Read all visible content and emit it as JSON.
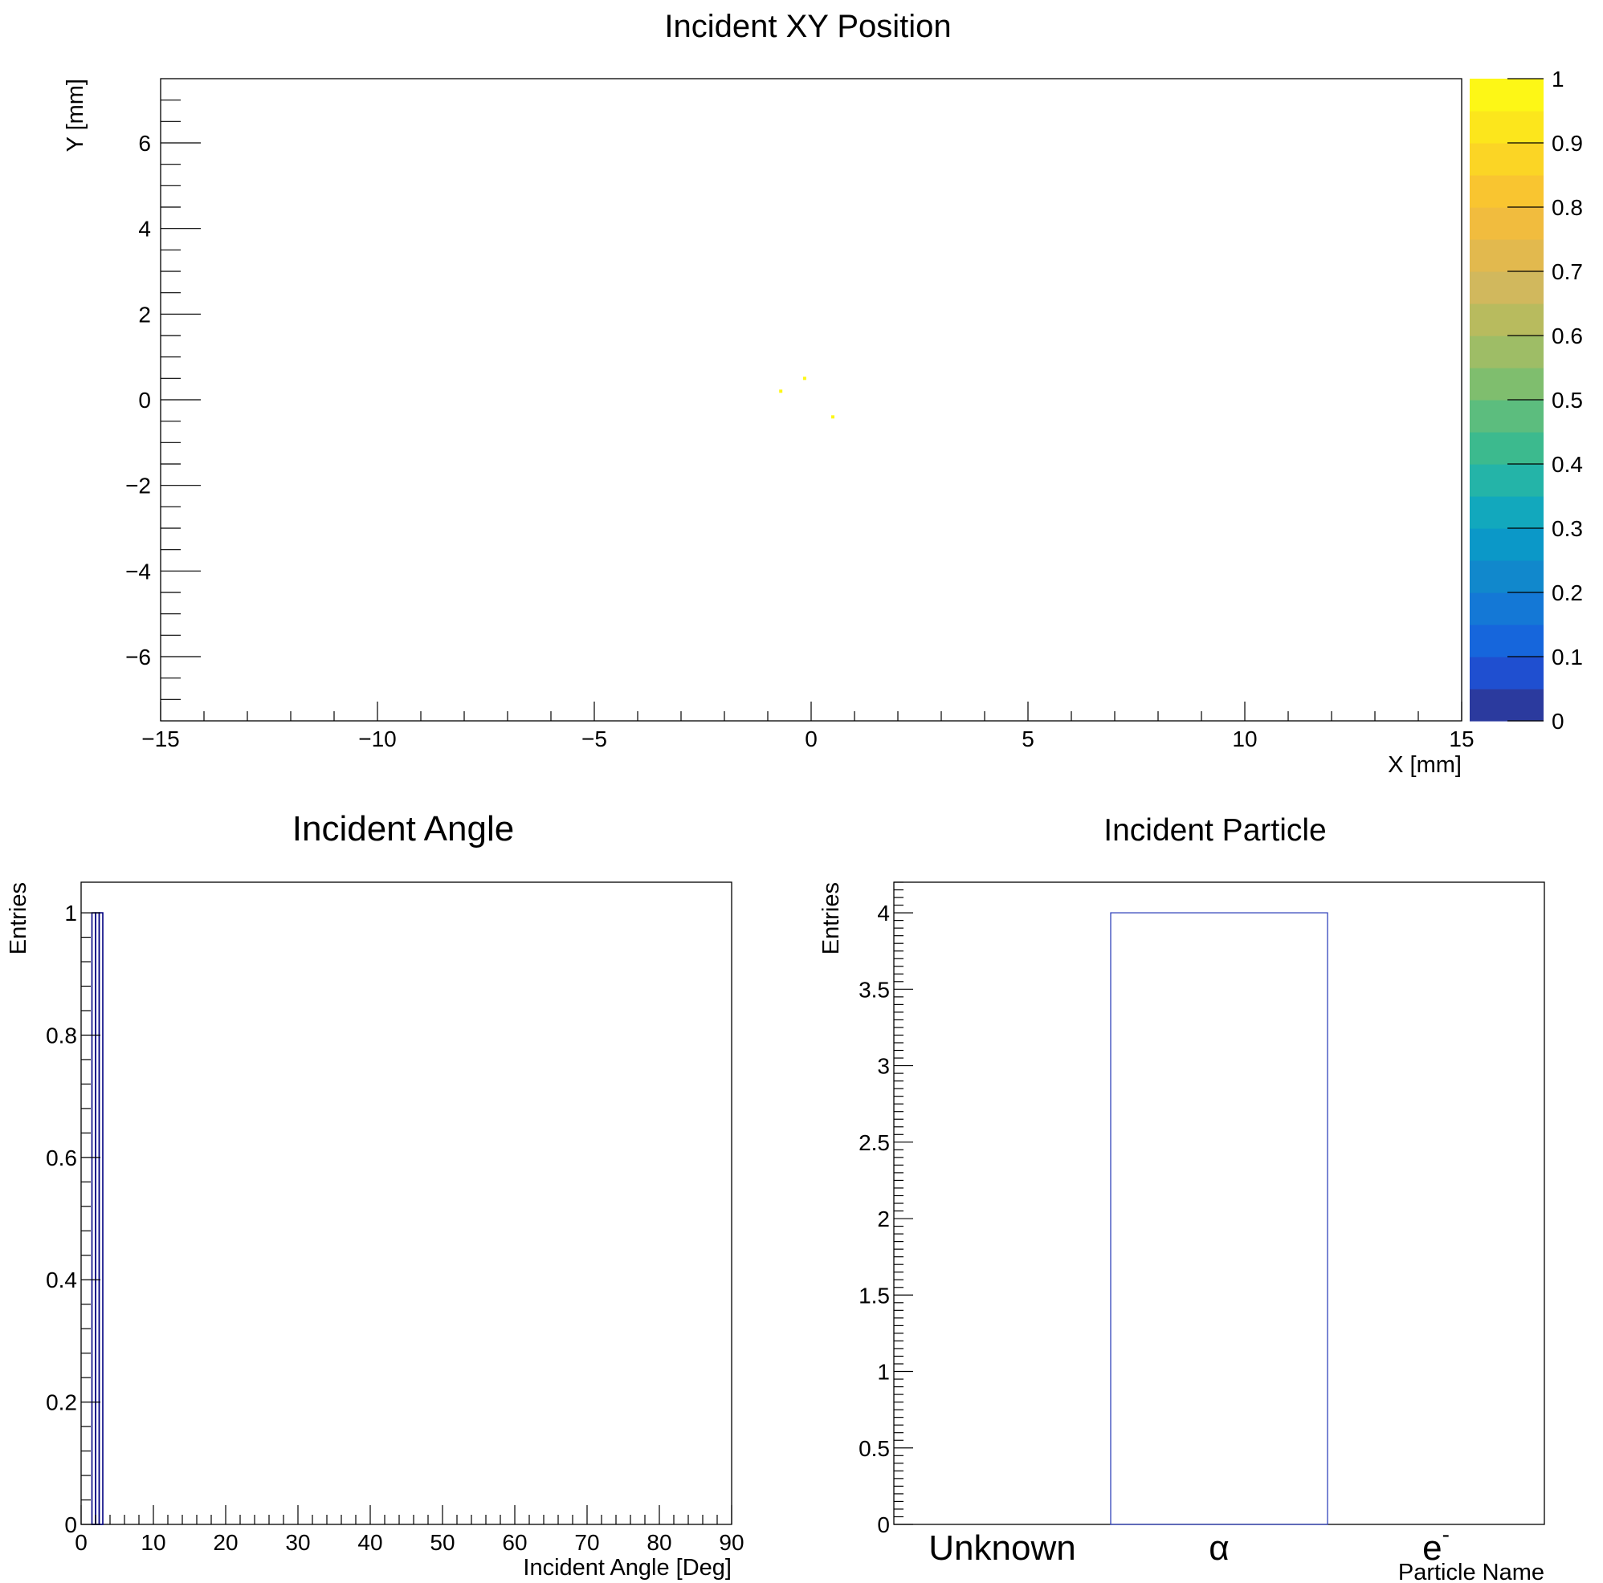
{
  "chart_data": [
    {
      "type": "heatmap",
      "title": "Incident XY Position",
      "xlabel": "X [mm]",
      "ylabel": "Y [mm]",
      "xlim": [
        -15,
        15
      ],
      "ylim": [
        -7.5,
        7.5
      ],
      "x_ticks": [
        "−15",
        "−10",
        "−5",
        "0",
        "5",
        "10",
        "15"
      ],
      "x_tick_values": [
        -15,
        -10,
        -5,
        0,
        5,
        10,
        15
      ],
      "y_ticks": [
        "−6",
        "−4",
        "−2",
        "0",
        "2",
        "4",
        "6"
      ],
      "y_tick_values": [
        -6,
        -4,
        -2,
        0,
        2,
        4,
        6
      ],
      "colorbar": {
        "range": [
          0,
          1
        ],
        "ticks": [
          "0",
          "0.1",
          "0.2",
          "0.3",
          "0.4",
          "0.5",
          "0.6",
          "0.7",
          "0.8",
          "0.9",
          "1"
        ],
        "tick_values": [
          0,
          0.1,
          0.2,
          0.3,
          0.4,
          0.5,
          0.6,
          0.7,
          0.8,
          0.9,
          1
        ],
        "palette": [
          "#2b3a9e",
          "#1f4fd0",
          "#1666dc",
          "#1478d6",
          "#1188cc",
          "#0b98c8",
          "#12a8bd",
          "#24b4a8",
          "#3cba8e",
          "#5cbd7e",
          "#7fbe6e",
          "#9ebd66",
          "#b8bb5e",
          "#d1b85d",
          "#e2b94e",
          "#f1bc3e",
          "#f9c530",
          "#fbd525",
          "#fce61c",
          "#fdf716"
        ]
      },
      "points": [
        {
          "x": -0.15,
          "y": 0.5,
          "value": 1
        },
        {
          "x": 0.5,
          "y": -0.4,
          "value": 1
        },
        {
          "x": -0.7,
          "y": 0.2,
          "value": 1
        }
      ]
    },
    {
      "type": "bar",
      "title": "Incident Angle",
      "xlabel": "Incident Angle [Deg]",
      "ylabel": "Entries",
      "xlim": [
        0,
        90
      ],
      "ylim": [
        0,
        1.05
      ],
      "x_ticks": [
        "0",
        "10",
        "20",
        "30",
        "40",
        "50",
        "60",
        "70",
        "80",
        "90"
      ],
      "x_tick_values": [
        0,
        10,
        20,
        30,
        40,
        50,
        60,
        70,
        80,
        90
      ],
      "y_ticks": [
        "0",
        "0.2",
        "0.4",
        "0.6",
        "0.8",
        "1"
      ],
      "y_tick_values": [
        0,
        0.2,
        0.4,
        0.6,
        0.8,
        1
      ],
      "bins": [
        {
          "x0": 1.5,
          "x1": 2.0,
          "value": 1
        },
        {
          "x0": 2.0,
          "x1": 2.5,
          "value": 1
        },
        {
          "x0": 2.5,
          "x1": 3.0,
          "value": 1
        }
      ],
      "line_color": "#000080"
    },
    {
      "type": "bar",
      "title": "Incident Particle",
      "xlabel": "Particle Name",
      "ylabel": "Entries",
      "ylim": [
        0,
        4.2
      ],
      "categories": [
        "Unknown",
        "α",
        "e"
      ],
      "category_superscripts": [
        "",
        "",
        "-"
      ],
      "values": [
        0,
        4,
        0
      ],
      "y_ticks": [
        "0",
        "0.5",
        "1",
        "1.5",
        "2",
        "2.5",
        "3",
        "3.5",
        "4"
      ],
      "y_tick_values": [
        0,
        0.5,
        1,
        1.5,
        2,
        2.5,
        3,
        3.5,
        4
      ],
      "line_color": "#3344bb"
    }
  ]
}
